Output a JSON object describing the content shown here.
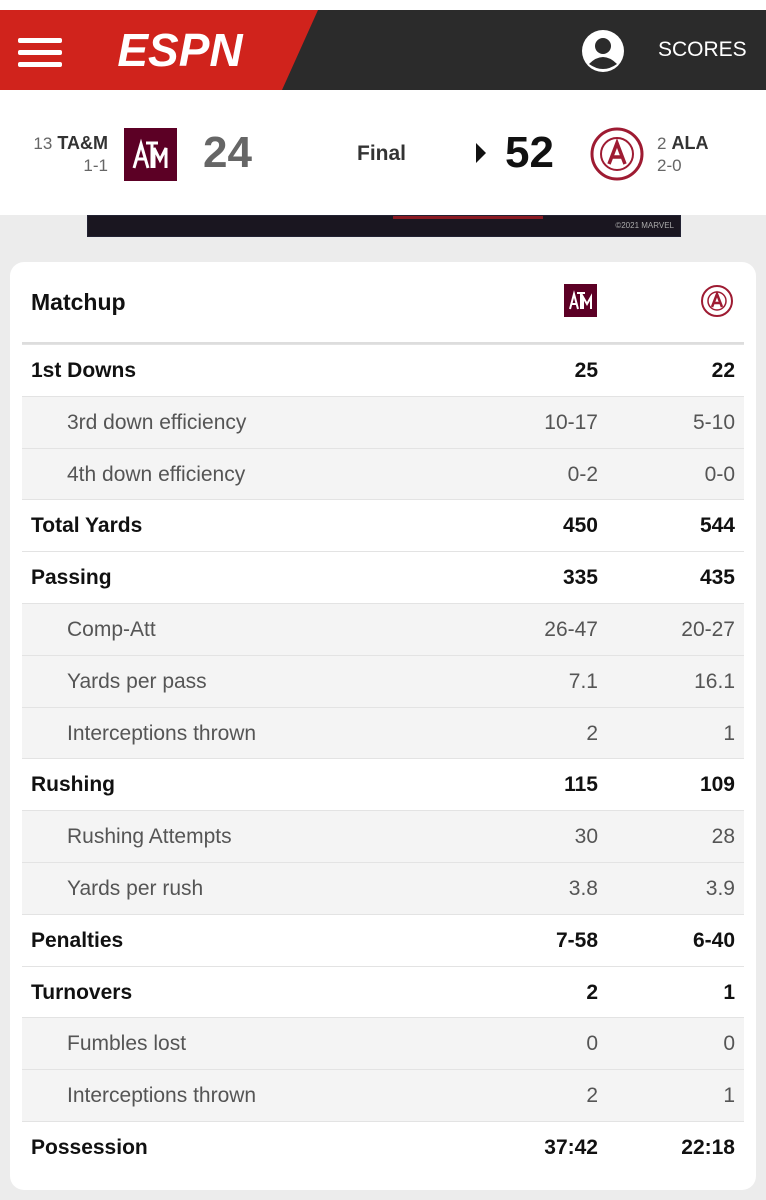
{
  "header": {
    "brand": "ESPN",
    "scores_link": "SCORES"
  },
  "scoreboard": {
    "away": {
      "rank": "13",
      "abbr": "TA&M",
      "record": "1-1",
      "score": "24"
    },
    "status": "Final",
    "home": {
      "rank": "2",
      "abbr": "ALA",
      "record": "2-0",
      "score": "52"
    }
  },
  "ad": {
    "caption": "©2021 MARVEL"
  },
  "table": {
    "title": "Matchup",
    "rows": [
      {
        "label": "1st Downs",
        "away": "25",
        "home": "22",
        "sub": false
      },
      {
        "label": "3rd down efficiency",
        "away": "10-17",
        "home": "5-10",
        "sub": true
      },
      {
        "label": "4th down efficiency",
        "away": "0-2",
        "home": "0-0",
        "sub": true
      },
      {
        "label": "Total Yards",
        "away": "450",
        "home": "544",
        "sub": false
      },
      {
        "label": "Passing",
        "away": "335",
        "home": "435",
        "sub": false
      },
      {
        "label": "Comp-Att",
        "away": "26-47",
        "home": "20-27",
        "sub": true
      },
      {
        "label": "Yards per pass",
        "away": "7.1",
        "home": "16.1",
        "sub": true
      },
      {
        "label": "Interceptions thrown",
        "away": "2",
        "home": "1",
        "sub": true
      },
      {
        "label": "Rushing",
        "away": "115",
        "home": "109",
        "sub": false
      },
      {
        "label": "Rushing Attempts",
        "away": "30",
        "home": "28",
        "sub": true
      },
      {
        "label": "Yards per rush",
        "away": "3.8",
        "home": "3.9",
        "sub": true
      },
      {
        "label": "Penalties",
        "away": "7-58",
        "home": "6-40",
        "sub": false
      },
      {
        "label": "Turnovers",
        "away": "2",
        "home": "1",
        "sub": false
      },
      {
        "label": "Fumbles lost",
        "away": "0",
        "home": "0",
        "sub": true
      },
      {
        "label": "Interceptions thrown",
        "away": "2",
        "home": "1",
        "sub": true
      },
      {
        "label": "Possession",
        "away": "37:42",
        "home": "22:18",
        "sub": false
      }
    ]
  }
}
